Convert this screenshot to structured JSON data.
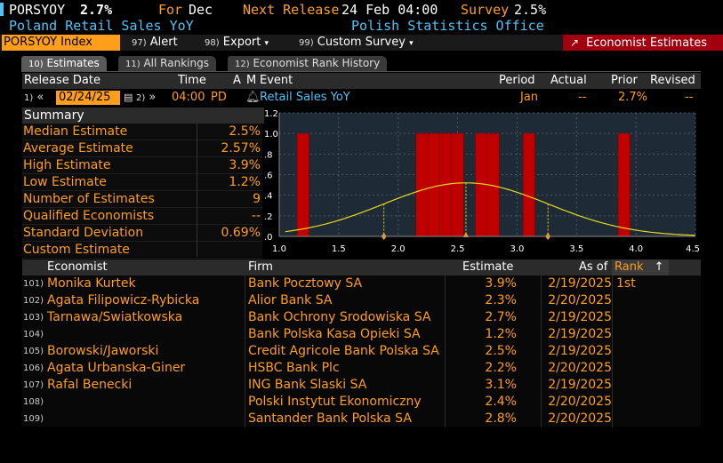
{
  "header": {
    "ticker": "PORSYOY",
    "value": "2.7%",
    "for_label": "For",
    "for_value": "Dec",
    "next_release_label": "Next Release",
    "next_release_value": "24 Feb 04:00",
    "survey_label": "Survey",
    "survey_value": "2.5%",
    "description": "Poland Retail Sales YoY",
    "source": "Polish Statistics Office"
  },
  "toolbar": {
    "index_label": "PORSYOY Index",
    "alert_num": "97)",
    "alert_label": "Alert",
    "export_num": "98)",
    "export_label": "Export",
    "custom_num": "99)",
    "custom_label": "Custom Survey",
    "economist_label": "Economist Estimates"
  },
  "tabs": [
    {
      "num": "10)",
      "label": "Estimates"
    },
    {
      "num": "11)",
      "label": "All Rankings"
    },
    {
      "num": "12)",
      "label": "Economist Rank History"
    }
  ],
  "release": {
    "headers": {
      "release_date": "Release Date",
      "time": "Time",
      "a": "A",
      "m": "M",
      "event": "Event",
      "period": "Period",
      "actual": "Actual",
      "prior": "Prior",
      "revised": "Revised"
    },
    "prev_num": "1)",
    "date": "02/24/25",
    "next_num": "2)",
    "time": "04:00",
    "tz": "PD",
    "event": "Retail Sales YoY",
    "period": "Jan",
    "actual": "--",
    "prior": "2.7%",
    "revised": "--"
  },
  "summary": {
    "title": "Summary",
    "rows": [
      {
        "label": "Median Estimate",
        "value": "2.5%"
      },
      {
        "label": "Average Estimate",
        "value": "2.57%"
      },
      {
        "label": "High Estimate",
        "value": "3.9%"
      },
      {
        "label": "Low Estimate",
        "value": "1.2%"
      },
      {
        "label": "Number of Estimates",
        "value": "9"
      },
      {
        "label": "Qualified Economists",
        "value": "--"
      },
      {
        "label": "Standard Deviation",
        "value": "0.69%"
      },
      {
        "label": "Custom Estimate",
        "value": ""
      }
    ]
  },
  "chart_data": {
    "type": "bar",
    "x_ticks": [
      "1.0",
      "1.5",
      "2.0",
      "2.5",
      "3.0",
      "3.5",
      "4.0",
      "4.5"
    ],
    "y_ticks": [
      ".0",
      ".2",
      ".4",
      ".6",
      ".8",
      "1.0",
      "1.2"
    ],
    "xlim": [
      1.0,
      4.5
    ],
    "ylim": [
      0,
      1.2
    ],
    "bins": [
      {
        "x": 1.2,
        "value": 1
      },
      {
        "x": 2.2,
        "value": 1
      },
      {
        "x": 2.3,
        "value": 1
      },
      {
        "x": 2.4,
        "value": 1
      },
      {
        "x": 2.5,
        "value": 1
      },
      {
        "x": 2.7,
        "value": 1
      },
      {
        "x": 2.8,
        "value": 1
      },
      {
        "x": 3.1,
        "value": 1
      },
      {
        "x": 3.9,
        "value": 1
      }
    ],
    "bin_width": 0.1,
    "curve": {
      "mean": 2.57,
      "sd": 0.69,
      "peak": 0.52
    },
    "markers": [
      1.88,
      2.57,
      3.26
    ],
    "bar_color": "#c00000",
    "curve_color": "#e6d81c",
    "grid": true
  },
  "table": {
    "headers": {
      "economist": "Economist",
      "firm": "Firm",
      "estimate": "Estimate",
      "as_of": "As of",
      "rank": "Rank"
    },
    "rows": [
      {
        "num": "101)",
        "economist": "Monika Kurtek",
        "firm": "Bank Pocztowy SA",
        "estimate": "3.9%",
        "as_of": "2/19/2025",
        "rank": "1st"
      },
      {
        "num": "102)",
        "economist": "Agata Filipowicz-Rybicka",
        "firm": "Alior Bank SA",
        "estimate": "2.3%",
        "as_of": "2/20/2025",
        "rank": ""
      },
      {
        "num": "103)",
        "economist": "Tarnawa/Swiatkowska",
        "firm": "Bank Ochrony Srodowiska SA",
        "estimate": "2.7%",
        "as_of": "2/19/2025",
        "rank": ""
      },
      {
        "num": "104)",
        "economist": "",
        "firm": "Bank Polska Kasa Opieki SA",
        "estimate": "1.2%",
        "as_of": "2/19/2025",
        "rank": ""
      },
      {
        "num": "105)",
        "economist": "Borowski/Jaworski",
        "firm": "Credit Agricole Bank Polska SA",
        "estimate": "2.5%",
        "as_of": "2/19/2025",
        "rank": ""
      },
      {
        "num": "106)",
        "economist": "Agata Urbanska-Giner",
        "firm": "HSBC Bank Plc",
        "estimate": "2.2%",
        "as_of": "2/20/2025",
        "rank": ""
      },
      {
        "num": "107)",
        "economist": "Rafal Benecki",
        "firm": "ING Bank Slaski SA",
        "estimate": "3.1%",
        "as_of": "2/19/2025",
        "rank": ""
      },
      {
        "num": "108)",
        "economist": "",
        "firm": "Polski Instytut Ekonomiczny",
        "estimate": "2.4%",
        "as_of": "2/20/2025",
        "rank": ""
      },
      {
        "num": "109)",
        "economist": "",
        "firm": "Santander Bank Polska SA",
        "estimate": "2.8%",
        "as_of": "2/20/2025",
        "rank": ""
      }
    ]
  },
  "colors": {
    "orange": "#ff9e1b",
    "cyan": "#4fc3f7",
    "red": "#a3000f"
  }
}
